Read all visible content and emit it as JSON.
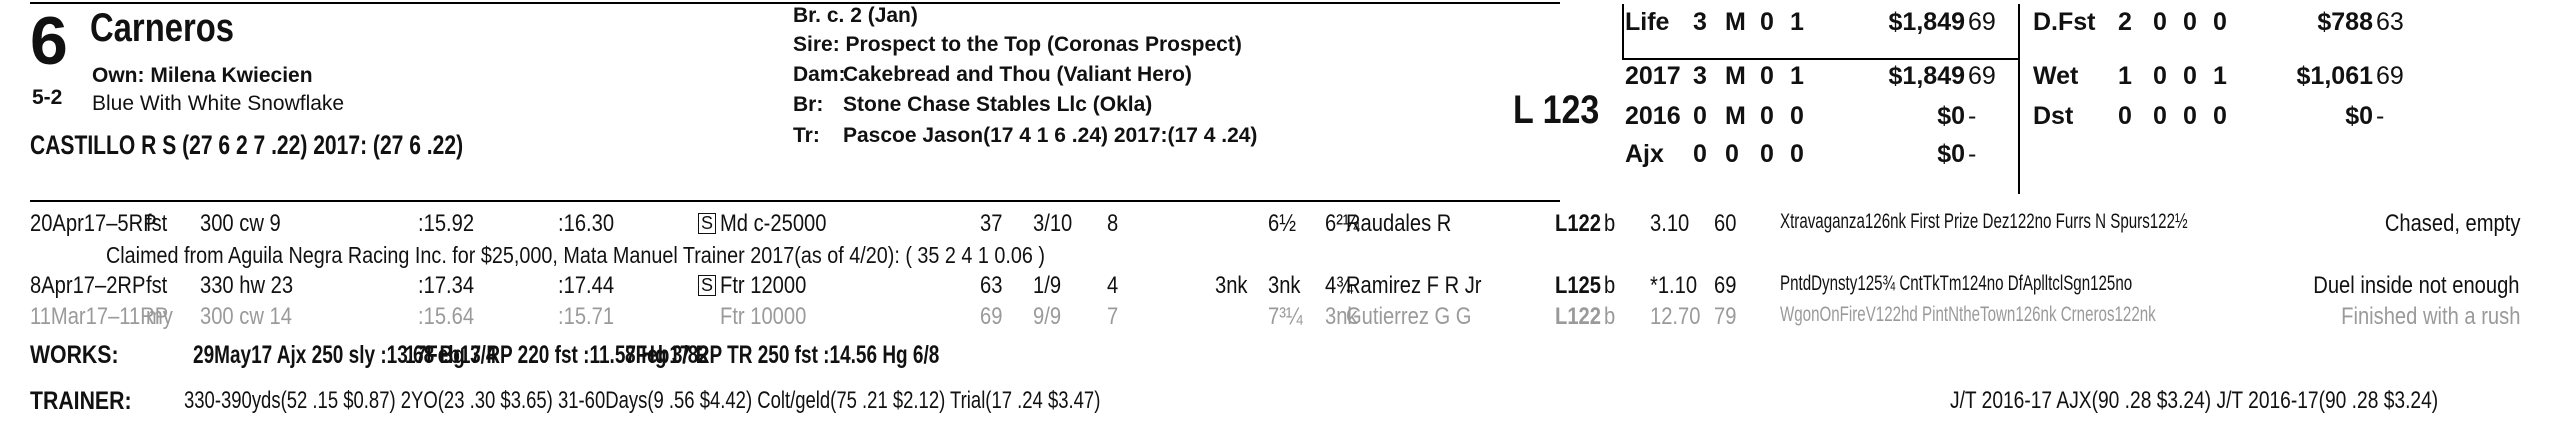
{
  "header": {
    "post_position": "6",
    "horse_name": "Carneros",
    "owner": "Own: Milena Kwiecien",
    "odds": "5-2",
    "silks": "Blue With White Snowflake",
    "jockey_line": "CASTILLO R S (27 6 2 7 .22) 2017: (27 6 .22)",
    "breeding": {
      "br": "Br. c. 2 (Jan)",
      "sire": "Sire: Prospect to the Top (Coronas Prospect)",
      "dam_label": "Dam:",
      "dam": "Cakebread and Thou (Valiant Hero)",
      "breeder_label": "Br:",
      "breeder": "Stone Chase Stables Llc (Okla)",
      "trainer_label": "Tr:",
      "trainer": "Pascoe Jason(17 4 1 6 .24)  2017:(17 4 .24)"
    },
    "weight": "L 123"
  },
  "stats_left": [
    {
      "label": "Life",
      "s": "3",
      "w": "M",
      "p": "0",
      "sh": "1",
      "earn": "$1,849",
      "fig": "69"
    },
    {
      "label": "2017",
      "s": "3",
      "w": "M",
      "p": "0",
      "sh": "1",
      "earn": "$1,849",
      "fig": "69"
    },
    {
      "label": "2016",
      "s": "0",
      "w": "M",
      "p": "0",
      "sh": "0",
      "earn": "$0",
      "fig": "-"
    },
    {
      "label": "Ajx",
      "s": "0",
      "w": "0",
      "p": "0",
      "sh": "0",
      "earn": "$0",
      "fig": "-"
    }
  ],
  "stats_right": [
    {
      "label": "D.Fst",
      "s": "2",
      "w": "0",
      "p": "0",
      "sh": "0",
      "earn": "$788",
      "fig": "63"
    },
    {
      "label": "Wet",
      "s": "1",
      "w": "0",
      "p": "0",
      "sh": "1",
      "earn": "$1,061",
      "fig": "69"
    },
    {
      "label": "Dst",
      "s": "0",
      "w": "0",
      "p": "0",
      "sh": "0",
      "earn": "$0",
      "fig": "-"
    }
  ],
  "races": [
    {
      "date": "20Apr17–5RP",
      "cond": "fst",
      "dist": "300 cw 9",
      "f1": ":15.92",
      "f2": ":16.30",
      "type_box": "S",
      "race_type": "Md c-25000",
      "speed": "37",
      "pp": "3/10",
      "st": "8",
      "c1": "",
      "c2": "6½",
      "fin": "6²¼",
      "jockey": "Raudales R",
      "wt": "L122",
      "med": "b",
      "odds": "3.10",
      "fig": "60",
      "comp": "Xtravaganza126nk First Prize Dez122no Furrs N Spurs122½",
      "comment": "Chased, empty"
    },
    {
      "date": "8Apr17–2RP",
      "cond": "fst",
      "dist": "330 hw 23",
      "f1": ":17.34",
      "f2": ":17.44",
      "type_box": "S",
      "race_type": "Ftr 12000",
      "speed": "63",
      "pp": "1/9",
      "st": "4",
      "c1": "3nk",
      "c2": "3nk",
      "fin": "4¾",
      "jockey": "Ramirez F R Jr",
      "wt": "L125",
      "med": "b",
      "odds": "*1.10",
      "fig": "69",
      "comp": "PntdDynsty125¾ CntTkTm124no DfAplltclSgn125no",
      "comment": "Duel inside not enough"
    },
    {
      "date": "11Mar17–11RP",
      "cond": "my",
      "dist": "300 cw 14",
      "f1": ":15.64",
      "f2": ":15.71",
      "type_box": "",
      "race_type": "Ftr 10000",
      "speed": "69",
      "pp": "9/9",
      "st": "7",
      "c1": "",
      "c2": "7³¼",
      "fin": "3nk",
      "jockey": "Gutierrez G G",
      "wt": "L122",
      "med": "b",
      "odds": "12.70",
      "fig": "79",
      "comp": "WgonOnFireV122hd PintNtheTown126nk Crneros122nk",
      "comment": "Finished with a rush"
    }
  ],
  "claimed_note": "Claimed from Aguila Negra Racing Inc.  for $25,000, Mata Manuel  Trainer 2017(as of 4/20): ( 35  2  4  1  0.06 )",
  "works": {
    "label": "WORKS:",
    "items": [
      "29May17 Ajx 250 sly  :13.68 Bg 3/4",
      "17Feb17 RP  220 fst  :11.57 Hg 3/82",
      "8Feb17 RP  TR 250 fst  :14.56 Hg 6/8"
    ]
  },
  "trainer_stats": {
    "label": "TRAINER:",
    "text": "330-390yds(52 .15 $0.87) 2YO(23 .30 $3.65) 31-60Days(9 .56 $4.42) Colt/geld(75 .21 $2.12) Trial(17 .24 $3.47)",
    "jt": "J/T 2016-17 AJX(90 .28 $3.24)  J/T 2016-17(90 .28 $3.24)"
  }
}
